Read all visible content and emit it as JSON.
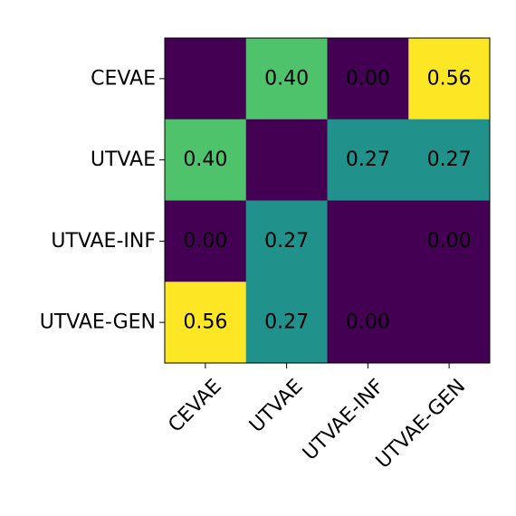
{
  "chart_data": {
    "type": "heatmap",
    "title": "",
    "xlabel": "",
    "ylabel": "",
    "row_labels": [
      "CEVAE",
      "UTVAE",
      "UTVAE-INF",
      "UTVAE-GEN"
    ],
    "col_labels": [
      "CEVAE",
      "UTVAE",
      "UTVAE-INF",
      "UTVAE-GEN"
    ],
    "values": [
      [
        null,
        0.4,
        0.0,
        0.56
      ],
      [
        0.4,
        null,
        0.27,
        0.27
      ],
      [
        0.0,
        0.27,
        null,
        0.0
      ],
      [
        0.56,
        0.27,
        0.0,
        null
      ]
    ],
    "cell_text": [
      [
        "",
        "0.40",
        "0.00",
        "0.56"
      ],
      [
        "0.40",
        "",
        "0.27",
        "0.27"
      ],
      [
        "0.00",
        "0.27",
        "",
        "0.00"
      ],
      [
        "0.56",
        "0.27",
        "0.00",
        ""
      ]
    ],
    "colormap": "viridis",
    "color_stops": [
      {
        "value": 0.0,
        "color": "#440154"
      },
      {
        "value": 0.27,
        "color": "#21918c"
      },
      {
        "value": 0.4,
        "color": "#4ec36b"
      },
      {
        "value": 0.56,
        "color": "#fde725"
      }
    ],
    "diagonal_color": "#440154",
    "x_tick_rotation_deg": 45,
    "grid": false,
    "legend": "none"
  }
}
